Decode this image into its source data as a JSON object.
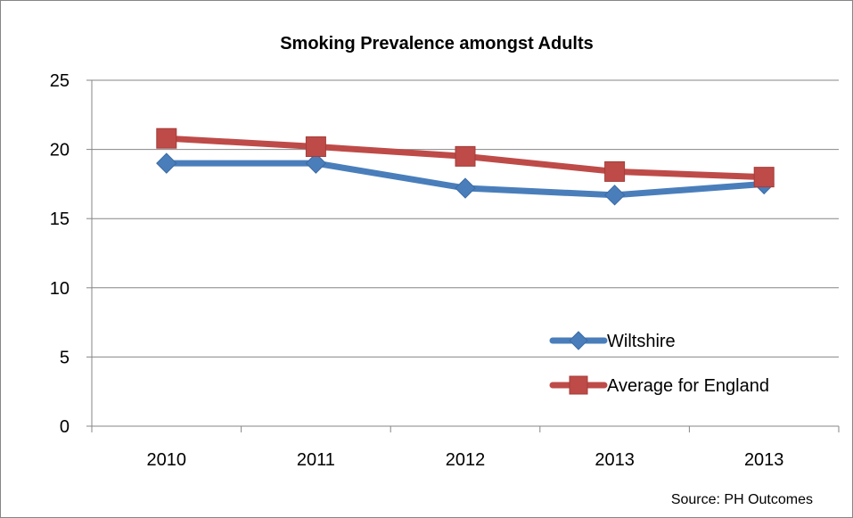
{
  "chart_data": {
    "type": "line",
    "title": "Smoking Prevalence amongst Adults",
    "categories": [
      "2010",
      "2011",
      "2012",
      "2013",
      "2013"
    ],
    "ylim": [
      0,
      25
    ],
    "yticks": [
      "0",
      "5",
      "10",
      "15",
      "20",
      "25"
    ],
    "grid": true,
    "legend_position": "right",
    "series": [
      {
        "name": "Wiltshire",
        "values": [
          19.0,
          19.0,
          17.2,
          16.7,
          17.5
        ],
        "color": "#4a7ebb",
        "marker": "diamond"
      },
      {
        "name": "Average for England",
        "values": [
          20.8,
          20.2,
          19.5,
          18.4,
          18.0
        ],
        "color": "#be4b48",
        "marker": "square"
      }
    ],
    "source": "Source: PH Outcomes"
  }
}
